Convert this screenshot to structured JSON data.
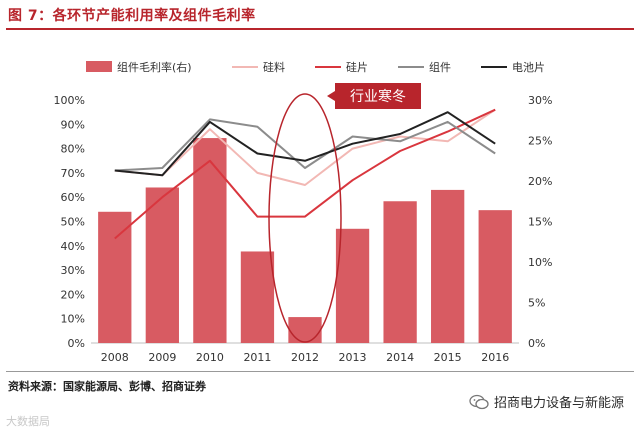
{
  "figure": {
    "title": "图 7：各环节产能利用率及组件毛利率",
    "source": "资料来源：国家能源局、彭博、招商证券"
  },
  "watermark": {
    "left_text": "大数据局",
    "right_text": "招商电力设备与新能源"
  },
  "chart_data": {
    "type": "bar+line",
    "categories": [
      "2008",
      "2009",
      "2010",
      "2011",
      "2012",
      "2013",
      "2014",
      "2015",
      "2016"
    ],
    "left_axis": {
      "min": 0,
      "max": 100,
      "step": 10,
      "suffix": "%"
    },
    "right_axis": {
      "min": 0,
      "max": 30,
      "step": 5,
      "suffix": "%"
    },
    "bars": {
      "name": "组件毛利率(右)",
      "axis": "right",
      "color": "#d85b62",
      "values": [
        16.2,
        19.2,
        25.3,
        11.3,
        3.2,
        14.1,
        17.5,
        18.9,
        16.4
      ]
    },
    "lines": [
      {
        "name": "硅料",
        "color": "#f2b8b4",
        "width": 2,
        "values": [
          71,
          69,
          88,
          70,
          65,
          80,
          85,
          83,
          96
        ]
      },
      {
        "name": "硅片",
        "color": "#d9363e",
        "width": 2,
        "values": [
          43,
          60,
          75,
          52,
          52,
          67,
          79,
          87,
          96
        ]
      },
      {
        "name": "组件",
        "color": "#8c8c8c",
        "width": 2,
        "values": [
          71,
          72,
          92,
          89,
          72,
          85,
          83,
          91,
          78
        ]
      },
      {
        "name": "电池片",
        "color": "#222222",
        "width": 2,
        "values": [
          71,
          69,
          91,
          78,
          75,
          82,
          86,
          95,
          82
        ]
      }
    ],
    "annotation": {
      "text": "行业寒冬",
      "category": "2012",
      "fill": "#b8252c",
      "text_color": "#ffffff"
    }
  }
}
